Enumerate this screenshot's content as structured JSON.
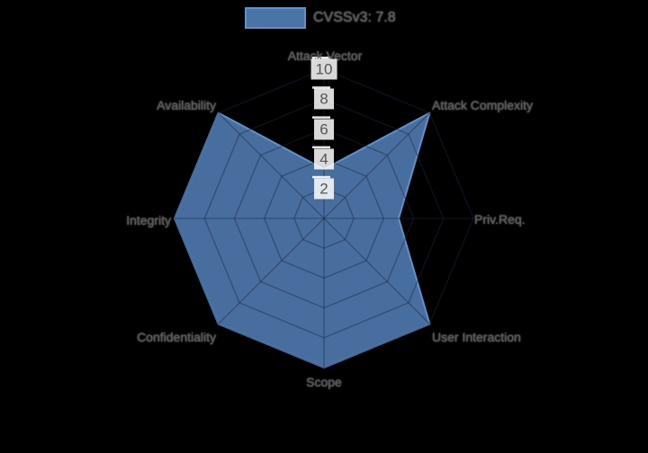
{
  "background": "#000000",
  "legend": {
    "label": "CVSSv3: 7.8"
  },
  "chart_data": {
    "type": "radar",
    "title": "",
    "categories": [
      "Attack Vector",
      "Attack Complexity",
      "Priv.Req.",
      "User Interaction",
      "Scope",
      "Confidentiality",
      "Integrity",
      "Availability"
    ],
    "series": [
      {
        "name": "CVSSv3: 7.8",
        "values": [
          3.3,
          10,
          5,
          10,
          10,
          10,
          10,
          10
        ],
        "fill_color": "#4a73a6",
        "line_color": "#5e92c8"
      }
    ],
    "radial_ticks": [
      2,
      4,
      6,
      8,
      10
    ],
    "rlim": [
      0,
      10
    ],
    "grid": true,
    "grid_rings": 5,
    "legend_position": "top-center",
    "colors": {
      "grid_overlay": "rgba(25,40,65,0.45)",
      "tick_mark": "rgba(255,255,255,0.9)",
      "tick_label_bg": "rgba(255,255,255,0.85)",
      "tick_label_text": "#555555",
      "axis_label_text": "#565656",
      "legend_text": "#555555"
    }
  }
}
